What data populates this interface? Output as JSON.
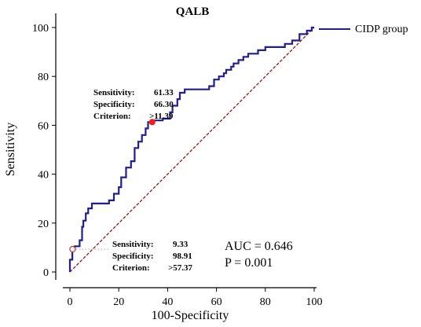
{
  "chart_data": {
    "type": "line",
    "title": "QALB",
    "xlabel": "100-Specificity",
    "ylabel": "Sensitivity",
    "xlim": [
      0,
      100
    ],
    "ylim": [
      0,
      100
    ],
    "x_ticks": [
      "0",
      "20",
      "40",
      "60",
      "80",
      "100"
    ],
    "y_ticks": [
      "0",
      "20",
      "40",
      "60",
      "80",
      "100"
    ],
    "grid": false,
    "legend_position": "top-right",
    "series": [
      {
        "name": "CIDP group",
        "color": "#1f1f8f",
        "points": [
          [
            0,
            0
          ],
          [
            0,
            5
          ],
          [
            1,
            5
          ],
          [
            1,
            9.3
          ],
          [
            2,
            9.3
          ],
          [
            2,
            10.5
          ],
          [
            4,
            10.5
          ],
          [
            4,
            13
          ],
          [
            5,
            13
          ],
          [
            5,
            18.5
          ],
          [
            5.5,
            18.5
          ],
          [
            5.5,
            21
          ],
          [
            6.5,
            21
          ],
          [
            6.5,
            24
          ],
          [
            7.5,
            24
          ],
          [
            7.5,
            26
          ],
          [
            9,
            26
          ],
          [
            9,
            28
          ],
          [
            16,
            28
          ],
          [
            16,
            29.3
          ],
          [
            18,
            29.3
          ],
          [
            18,
            32
          ],
          [
            20,
            32
          ],
          [
            20,
            34.7
          ],
          [
            21,
            34.7
          ],
          [
            21,
            38.7
          ],
          [
            23,
            38.7
          ],
          [
            23,
            42.7
          ],
          [
            25,
            42.7
          ],
          [
            25,
            45.3
          ],
          [
            26.5,
            45.3
          ],
          [
            26.5,
            50.7
          ],
          [
            28,
            50.7
          ],
          [
            28,
            53.3
          ],
          [
            29.5,
            53.3
          ],
          [
            29.5,
            56
          ],
          [
            31,
            56
          ],
          [
            31,
            58.7
          ],
          [
            32,
            58.7
          ],
          [
            32,
            61.33
          ],
          [
            33.7,
            61.33
          ],
          [
            33.7,
            62
          ],
          [
            38,
            62
          ],
          [
            38,
            62.7
          ],
          [
            41,
            62.7
          ],
          [
            41,
            65.3
          ],
          [
            42,
            65.3
          ],
          [
            42,
            68
          ],
          [
            44,
            68
          ],
          [
            44,
            70.7
          ],
          [
            45,
            70.7
          ],
          [
            45,
            73.3
          ],
          [
            47,
            73.3
          ],
          [
            47,
            74.7
          ],
          [
            57,
            74.7
          ],
          [
            57,
            76
          ],
          [
            59,
            76
          ],
          [
            59,
            78.7
          ],
          [
            61,
            78.7
          ],
          [
            61,
            80
          ],
          [
            63,
            80
          ],
          [
            63,
            81.3
          ],
          [
            64,
            81.3
          ],
          [
            64,
            82.7
          ],
          [
            66,
            82.7
          ],
          [
            66,
            84
          ],
          [
            67,
            84
          ],
          [
            67,
            85.3
          ],
          [
            69,
            85.3
          ],
          [
            69,
            86.7
          ],
          [
            71,
            86.7
          ],
          [
            71,
            88
          ],
          [
            73,
            88
          ],
          [
            73,
            89.3
          ],
          [
            77,
            89.3
          ],
          [
            77,
            90.7
          ],
          [
            80,
            90.7
          ],
          [
            80,
            92
          ],
          [
            88,
            92
          ],
          [
            88,
            93.3
          ],
          [
            91,
            93.3
          ],
          [
            91,
            94.7
          ],
          [
            94,
            94.7
          ],
          [
            94,
            97.3
          ],
          [
            97,
            97.3
          ],
          [
            97,
            98.7
          ],
          [
            99,
            98.7
          ],
          [
            99,
            100
          ],
          [
            100,
            100
          ]
        ]
      }
    ],
    "reference_line": {
      "from": [
        0,
        0
      ],
      "to": [
        100,
        100
      ],
      "color": "#8b1a1a",
      "style": "dashed"
    },
    "highlight_points": [
      {
        "x": 33.7,
        "y": 61.33,
        "marker": "filled-red",
        "lines": [
          {
            "label": "Sensitivity:",
            "value": "61.33"
          },
          {
            "label": "Specificity:",
            "value": "66.30"
          },
          {
            "label": "Criterion:",
            "value": ">11.39"
          }
        ]
      },
      {
        "x": 1.09,
        "y": 9.33,
        "marker": "open-red",
        "lines": [
          {
            "label": "Sensitivity:",
            "value": "9.33"
          },
          {
            "label": "Specificity:",
            "value": "98.91"
          },
          {
            "label": "Criterion:",
            "value": ">57.37"
          }
        ]
      }
    ],
    "stats": {
      "auc": "AUC = 0.646",
      "p": "P = 0.001"
    }
  }
}
